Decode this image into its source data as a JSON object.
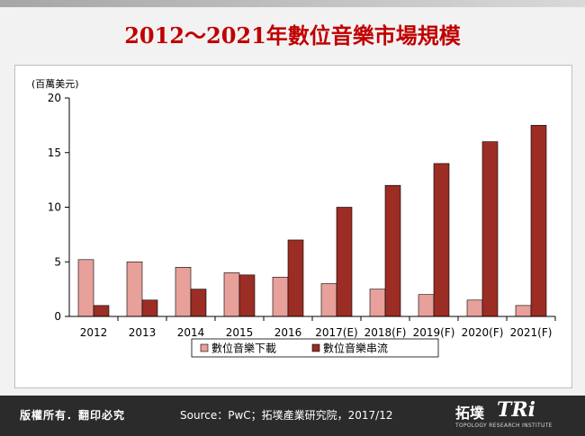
{
  "header": {
    "title": "2012～2021年數位音樂市場規模"
  },
  "footer": {
    "copyright": "版權所有．翻印必究",
    "source": "Source：PwC；拓墣產業研究院，2017/12",
    "logo_cn": "拓墣",
    "logo_tri": "TRi",
    "logo_sub": "TOPOLOGY RESEARCH INSTITUTE"
  },
  "colors": {
    "series_download": "#e8a09a",
    "series_stream": "#9b2d25",
    "title": "#c00000"
  },
  "chart_data": {
    "type": "bar",
    "title": "2012～2021年數位音樂市場規模",
    "unit_label": "(百萬美元)",
    "ylim": [
      0,
      20
    ],
    "yticks": [
      0,
      5,
      10,
      15,
      20
    ],
    "categories": [
      "2012",
      "2013",
      "2014",
      "2015",
      "2016",
      "2017(E)",
      "2018(F)",
      "2019(F)",
      "2020(F)",
      "2021(F)"
    ],
    "series": [
      {
        "name": "數位音樂下載",
        "values": [
          5.2,
          5.0,
          4.5,
          4.0,
          3.6,
          3.0,
          2.5,
          2.0,
          1.5,
          1.0
        ]
      },
      {
        "name": "數位音樂串流",
        "values": [
          1.0,
          1.5,
          2.5,
          3.8,
          7.0,
          10.0,
          12.0,
          14.0,
          16.0,
          17.5
        ]
      }
    ],
    "legend_position": "bottom",
    "grid": false
  }
}
